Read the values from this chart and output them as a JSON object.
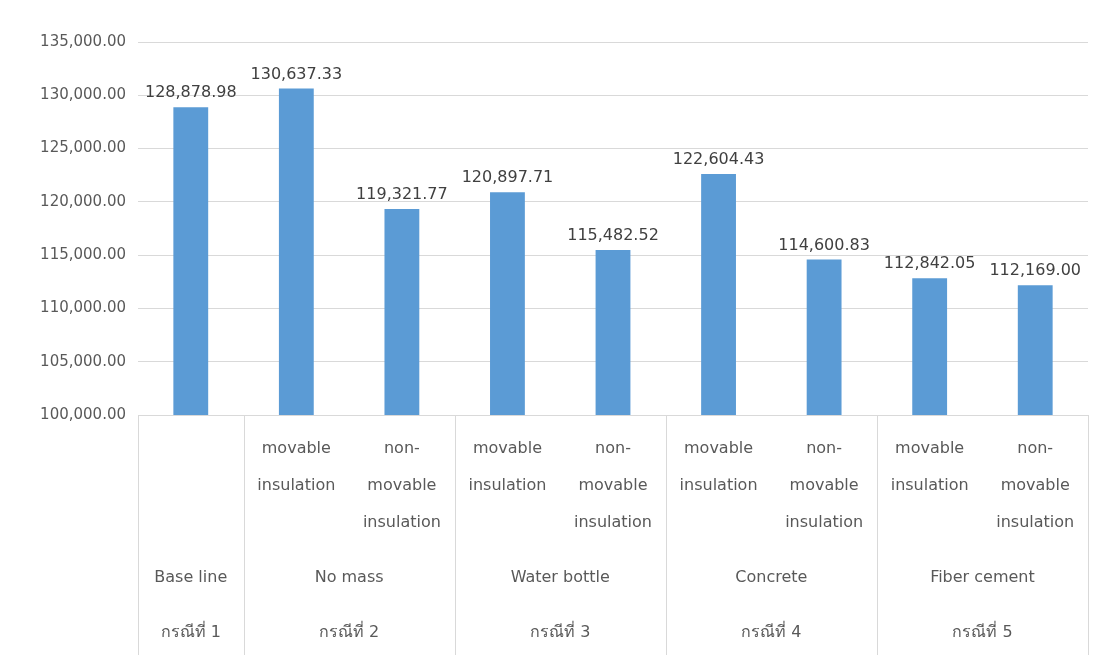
{
  "chart_data": {
    "type": "bar",
    "categories": [
      null,
      "movable insulation",
      "non-movable insulation",
      "movable insulation",
      "non-movable insulation",
      "movable insulation",
      "non-movable insulation",
      "movable insulation",
      "non-movable insulation"
    ],
    "values": [
      128878.98,
      130637.33,
      119321.77,
      120897.71,
      115482.52,
      122604.43,
      114600.83,
      112842.05,
      112169.0
    ],
    "color": "#5b9bd5",
    "ylim": [
      100000,
      135000
    ],
    "yticks": [
      {
        "value": 100000,
        "label": "100,000.00"
      },
      {
        "value": 105000,
        "label": "105,000.00"
      },
      {
        "value": 110000,
        "label": "110,000.00"
      },
      {
        "value": 115000,
        "label": "115,000.00"
      },
      {
        "value": 120000,
        "label": "120,000.00"
      },
      {
        "value": 125000,
        "label": "125,000.00"
      },
      {
        "value": 130000,
        "label": "130,000.00"
      },
      {
        "value": 135000,
        "label": "135,000.00"
      }
    ],
    "value_labels": [
      "128,878.98",
      "130,637.33",
      "119,321.77",
      "120,897.71",
      "115,482.52",
      "122,604.43",
      "114,600.83",
      "112,842.05",
      "112,169.00"
    ],
    "grid": "y",
    "legend": false,
    "annotations": [
      "Base line",
      "กรณีที่ 1",
      "No mass",
      "กรณีที่ 2",
      "Water bottle",
      "กรณีที่ 3",
      "Concrete",
      "กรณีที่ 4",
      "Fiber cement",
      "กรณีที่ 5"
    ]
  }
}
